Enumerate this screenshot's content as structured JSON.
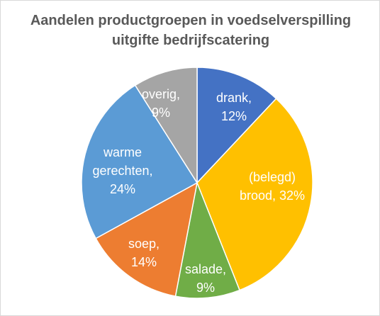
{
  "chart_data": {
    "type": "pie",
    "title": "Aandelen productgroepen in voedselverspilling uitgifte bedrijfscatering",
    "categories": [
      "drank",
      "(belegd) brood",
      "salade",
      "soep",
      "warme gerechten",
      "overig"
    ],
    "values": [
      12,
      32,
      9,
      14,
      24,
      9
    ],
    "value_labels": [
      "drank, 12%",
      "(belegd) brood, 32%",
      "salade, 9%",
      "soep, 14%",
      "warme gerechten, 24%",
      "overig, 9%"
    ],
    "colors": [
      "#4472c4",
      "#ffc000",
      "#70ad47",
      "#ed7d31",
      "#5b9bd5",
      "#a5a5a5"
    ]
  }
}
